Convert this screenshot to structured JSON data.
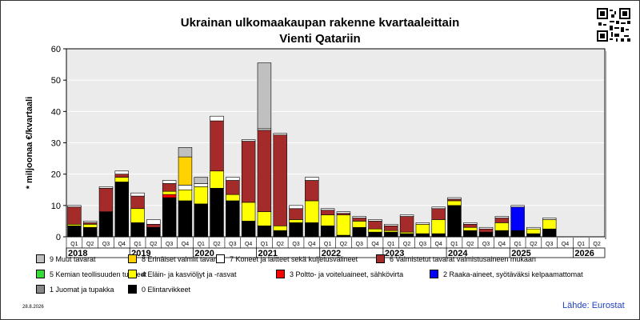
{
  "title": "Ukrainan ulkomaakaupan rakenne kvartaaleittain",
  "subtitle": "Vienti Qatariin",
  "date": "28.8.2026",
  "source": "Lähde: Eurostat",
  "colors": {
    "cat9": "#c0c0c0",
    "cat8": "#ffd200",
    "cat7": "#ffffff",
    "cat6": "#a52a2a",
    "cat5": "#33dd33",
    "cat4": "#ffff00",
    "cat3": "#ff0000",
    "cat2": "#0000ff",
    "cat1": "#888888",
    "cat0": "#000000"
  },
  "legend": [
    {
      "label": "9 Muut tavarat",
      "color": "#c0c0c0"
    },
    {
      "label": "8 Erinäiset valmiit tavarat",
      "color": "#ffd200"
    },
    {
      "label": "7 Koneet ja laitteet sekä kuljetusvälineet",
      "color": "#ffffff"
    },
    {
      "label": "6 Valmistetut tavarat valmistusaineen mukaan",
      "color": "#a52a2a"
    },
    {
      "label": "5 Kemian teollisuuden tuotteet",
      "color": "#33dd33"
    },
    {
      "label": "4 Eläin- ja kasviöljyt ja -rasvat",
      "color": "#ffff00"
    },
    {
      "label": "3 Poltto- ja voiteluaineet, sähkövirta",
      "color": "#ff0000"
    },
    {
      "label": "2 Raaka-aineet, syötäväksi kelpaamattomat",
      "color": "#0000ff"
    },
    {
      "label": "1 Juomat ja tupakka",
      "color": "#888888"
    },
    {
      "label": "0 Elintarvikkeet",
      "color": "#000000"
    }
  ],
  "chart_data": {
    "type": "bar",
    "stacked": true,
    "title": "Ukrainan ulkomaakaupan rakenne kvartaaleittain",
    "subtitle": "Vienti Qatariin",
    "ylabel": "* miljoonaa €/kvartaali",
    "ylim": [
      0,
      60
    ],
    "yticks": [
      0,
      10,
      20,
      30,
      40,
      50,
      60
    ],
    "grid": true,
    "years": [
      "2018",
      "2019",
      "2020",
      "2021",
      "2022",
      "2023",
      "2024",
      "2025",
      "2026"
    ],
    "categories": [
      "Q1",
      "Q2",
      "Q3",
      "Q4",
      "Q1",
      "Q2",
      "Q3",
      "Q4",
      "Q1",
      "Q2",
      "Q3",
      "Q4",
      "Q1",
      "Q2",
      "Q3",
      "Q4",
      "Q1",
      "Q2",
      "Q3",
      "Q4",
      "Q1",
      "Q2",
      "Q3",
      "Q4",
      "Q1",
      "Q2",
      "Q3",
      "Q4",
      "Q1",
      "Q2",
      "Q3",
      "Q4",
      "Q1",
      "Q2"
    ],
    "series": [
      {
        "name": "0 Elintarvikkeet",
        "color": "#000000",
        "values": [
          3.5,
          3.0,
          8.0,
          17.5,
          4.5,
          3.0,
          12.5,
          11.5,
          10.5,
          15.5,
          11.5,
          5.0,
          3.5,
          2.0,
          4.5,
          4.5,
          3.5,
          0.5,
          3.0,
          1.5,
          1.5,
          1.0,
          1.0,
          1.0,
          10.0,
          2.0,
          1.5,
          2.0,
          2.0,
          1.0,
          2.5,
          0,
          0,
          0
        ]
      },
      {
        "name": "1 Juomat ja tupakka",
        "color": "#888888",
        "values": [
          0,
          0,
          0,
          0,
          0,
          0,
          0,
          0,
          0,
          0,
          0,
          0,
          0,
          0,
          0,
          0,
          0,
          0,
          0,
          0,
          0,
          0,
          0,
          0,
          0,
          0,
          0,
          0,
          0,
          0,
          0,
          0,
          0,
          0
        ]
      },
      {
        "name": "2 Raaka-aineet, syötäväksi kelpaamattomat",
        "color": "#0000ff",
        "values": [
          0,
          0,
          0,
          0,
          0,
          0,
          0,
          0,
          0,
          0,
          0,
          0,
          0,
          0,
          0,
          0,
          0,
          0,
          0,
          0,
          0,
          0,
          0,
          0,
          0,
          0,
          0,
          0,
          7.5,
          0,
          0,
          0,
          0,
          0
        ]
      },
      {
        "name": "3 Poltto- ja voiteluaineet, sähkövirta",
        "color": "#ff0000",
        "values": [
          0,
          0,
          0,
          0,
          0,
          0,
          1.0,
          0,
          0,
          0,
          0,
          0,
          0,
          0,
          0,
          0,
          0,
          0,
          0,
          0,
          0,
          0,
          0,
          0,
          0,
          0,
          0,
          0,
          0,
          0,
          0,
          0,
          0,
          0
        ]
      },
      {
        "name": "4 Eläin- ja kasviöljyt ja -rasvat",
        "color": "#ffff00",
        "values": [
          0.5,
          1.0,
          0,
          1.5,
          4.5,
          0,
          1.0,
          3.5,
          5.5,
          5.5,
          2.0,
          6.0,
          4.5,
          1.5,
          1.0,
          7.0,
          3.5,
          6.5,
          2.0,
          1.0,
          0.5,
          0.5,
          3.0,
          4.5,
          1.5,
          1.0,
          0,
          2.5,
          0,
          1.5,
          3.0,
          0,
          0,
          0
        ]
      },
      {
        "name": "5 Kemian teollisuuden tuotteet",
        "color": "#33dd33",
        "values": [
          0,
          0,
          0,
          0,
          0,
          0,
          0,
          0,
          0,
          0,
          0,
          0,
          0,
          0,
          0,
          0,
          0,
          0,
          0,
          0,
          0,
          0,
          0,
          0,
          0,
          0,
          0,
          0,
          0,
          0,
          0,
          0,
          0,
          0
        ]
      },
      {
        "name": "6 Valmistetut tavarat valmistusaineen mukaan",
        "color": "#a52a2a",
        "values": [
          5.5,
          0.5,
          7.5,
          1.0,
          4.0,
          1.0,
          2.5,
          0,
          0,
          16.0,
          4.5,
          19.5,
          26.0,
          29.0,
          3.5,
          6.5,
          1.5,
          0.5,
          1.0,
          2.5,
          1.5,
          5.0,
          0,
          3.5,
          0.5,
          1.0,
          1.0,
          1.5,
          0,
          0,
          0,
          0,
          0,
          0
        ]
      },
      {
        "name": "7 Koneet ja laitteet sekä kuljetusvälineet",
        "color": "#ffffff",
        "values": [
          0.5,
          0.5,
          0.5,
          1.0,
          1.0,
          1.5,
          1.0,
          1.5,
          1.0,
          1.5,
          1.0,
          0.5,
          0.5,
          0.5,
          1.0,
          1.0,
          0.5,
          0.5,
          0.5,
          0.5,
          0.5,
          0.5,
          0.5,
          0.5,
          0.5,
          0.5,
          0.5,
          0.5,
          0.5,
          0.5,
          0.5,
          0,
          0,
          0
        ]
      },
      {
        "name": "8 Erinäiset valmiit tavarat",
        "color": "#ffd200",
        "values": [
          0,
          0,
          0,
          0,
          0,
          0,
          0,
          9.0,
          0,
          0,
          0,
          0,
          0,
          0,
          0,
          0,
          0,
          0,
          0,
          0,
          0,
          0,
          0,
          0,
          0,
          0,
          0,
          0,
          0,
          0,
          0,
          0,
          0,
          0
        ]
      },
      {
        "name": "9 Muut tavarat",
        "color": "#c0c0c0",
        "values": [
          0,
          0,
          0,
          0,
          0,
          0,
          0,
          3.0,
          2.0,
          0,
          0,
          0,
          21.0,
          0,
          0,
          0,
          0,
          0,
          0,
          0,
          0,
          0,
          0,
          0,
          0,
          0,
          0,
          0,
          0,
          0,
          0,
          0,
          0,
          0
        ]
      }
    ]
  }
}
